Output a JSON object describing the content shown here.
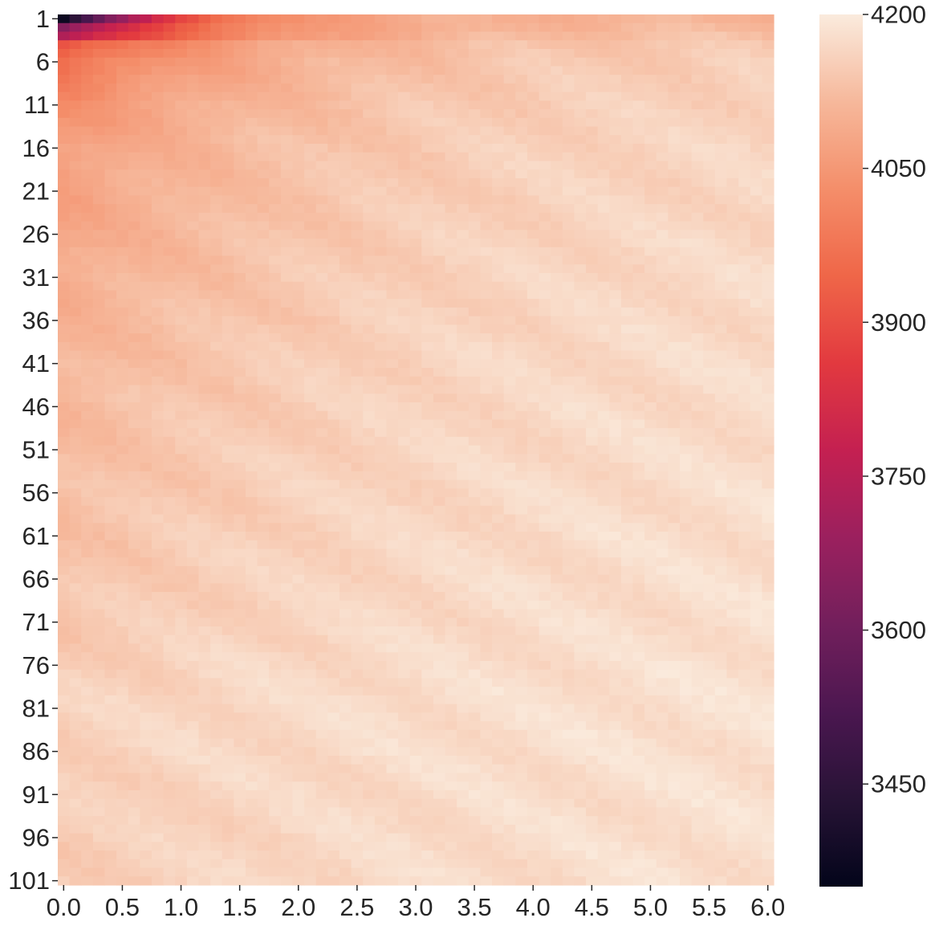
{
  "chart_data": {
    "type": "heatmap",
    "title": "",
    "xlabel": "",
    "ylabel": "",
    "x_tick_labels": [
      "0.0",
      "0.5",
      "1.0",
      "1.5",
      "2.0",
      "2.5",
      "3.0",
      "3.5",
      "4.0",
      "4.5",
      "5.0",
      "5.5",
      "6.0"
    ],
    "y_tick_labels": [
      "1",
      "6",
      "11",
      "16",
      "21",
      "26",
      "31",
      "36",
      "41",
      "46",
      "51",
      "56",
      "61",
      "66",
      "71",
      "76",
      "81",
      "86",
      "91",
      "96",
      "101"
    ],
    "x_range": [
      0.0,
      6.0
    ],
    "y_range": [
      1,
      101
    ],
    "n_columns": 61,
    "n_rows": 101,
    "colormap": "rocket",
    "colorbar": {
      "vmin": 3350,
      "vmax": 4200,
      "tick_labels": [
        "3450",
        "3600",
        "3750",
        "3900",
        "4050",
        "4200"
      ],
      "tick_values": [
        3450,
        3600,
        3750,
        3900,
        4050,
        4200
      ]
    },
    "row_profile": {
      "description_values": "approximate value at x=0.0 by row, then values approach plateau with x",
      "rows": [
        1,
        2,
        3,
        4,
        5,
        6,
        8,
        11,
        16,
        21,
        26,
        31,
        41,
        51,
        61,
        71,
        81,
        91,
        101
      ],
      "value_at_x0": [
        3360,
        3640,
        3720,
        3900,
        3930,
        3960,
        3990,
        4030,
        4060,
        4070,
        4080,
        4090,
        4110,
        4120,
        4130,
        4140,
        4160,
        4150,
        4150
      ],
      "value_at_x6": [
        4110,
        4120,
        4135,
        4145,
        4150,
        4155,
        4160,
        4165,
        4170,
        4172,
        4175,
        4178,
        4180,
        4182,
        4183,
        4184,
        4185,
        4185,
        4185
      ]
    },
    "grid": false,
    "legend": "colorbar-right"
  }
}
